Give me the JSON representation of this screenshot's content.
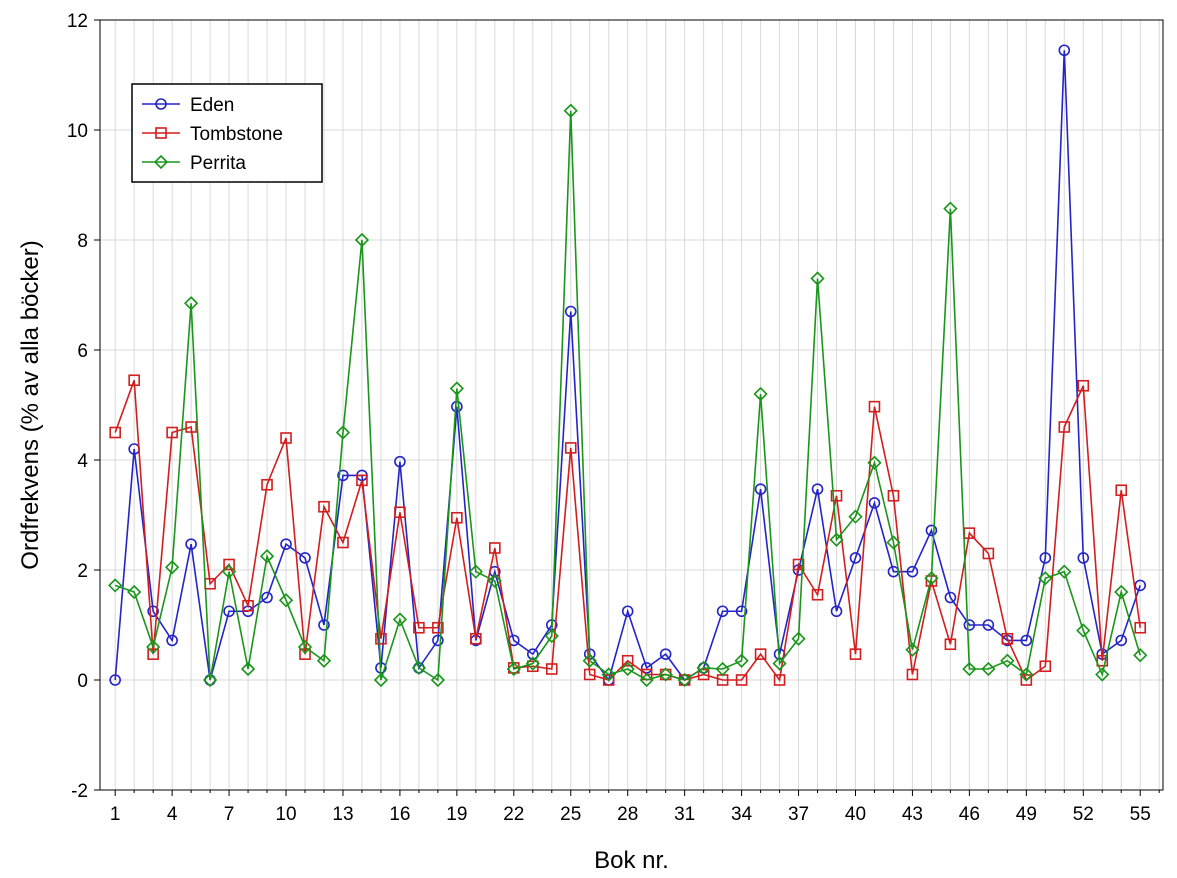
{
  "chart_data": {
    "type": "line",
    "xlabel": "Bok nr.",
    "ylabel": "Ordfrekvens (% av alla böcker)",
    "xlim": [
      0.2,
      56.2
    ],
    "ylim": [
      -2,
      12
    ],
    "x_ticks": [
      1,
      4,
      7,
      10,
      13,
      16,
      19,
      22,
      25,
      28,
      31,
      34,
      37,
      40,
      43,
      46,
      49,
      52,
      55
    ],
    "y_ticks": [
      -2,
      0,
      2,
      4,
      6,
      8,
      10,
      12
    ],
    "grid": true,
    "legend_position": "top-left",
    "x": [
      1,
      2,
      3,
      4,
      5,
      6,
      7,
      8,
      9,
      10,
      11,
      12,
      13,
      14,
      15,
      16,
      17,
      18,
      19,
      20,
      21,
      22,
      23,
      24,
      25,
      26,
      27,
      28,
      29,
      30,
      31,
      32,
      33,
      34,
      35,
      36,
      37,
      38,
      39,
      40,
      41,
      42,
      43,
      44,
      45,
      46,
      47,
      48,
      49,
      50,
      51,
      52,
      53,
      54,
      55
    ],
    "series": [
      {
        "name": "Eden",
        "color": "#2424c8",
        "marker": "circle",
        "values": [
          0,
          4.2,
          1.25,
          0.72,
          2.47,
          0,
          1.25,
          1.25,
          1.5,
          2.47,
          2.22,
          1,
          3.72,
          3.72,
          0.22,
          3.97,
          0.22,
          0.72,
          4.97,
          0.72,
          1.97,
          0.72,
          0.47,
          1,
          6.7,
          0.47,
          0,
          1.25,
          0.22,
          0.47,
          0,
          0.22,
          1.25,
          1.25,
          3.47,
          0.47,
          2,
          3.47,
          1.25,
          2.22,
          3.22,
          1.97,
          1.97,
          2.72,
          1.5,
          1,
          1,
          0.72,
          0.72,
          2.22,
          11.45,
          2.22,
          0.47,
          0.72,
          1.72
        ]
      },
      {
        "name": "Tombstone",
        "color": "#d21e1e",
        "marker": "square",
        "values": [
          4.5,
          5.45,
          0.47,
          4.5,
          4.6,
          1.75,
          2.1,
          1.35,
          3.55,
          4.4,
          0.47,
          3.15,
          2.5,
          3.63,
          0.75,
          3.05,
          0.95,
          0.95,
          2.95,
          0.75,
          2.4,
          0.22,
          0.25,
          0.2,
          4.22,
          0.1,
          0,
          0.35,
          0.1,
          0.1,
          0,
          0.1,
          0,
          0,
          0.47,
          0,
          2.1,
          1.55,
          3.35,
          0.47,
          4.97,
          3.35,
          0.1,
          1.8,
          0.65,
          2.67,
          2.3,
          0.75,
          0,
          0.25,
          4.6,
          5.35,
          0.35,
          3.45,
          0.95
        ]
      },
      {
        "name": "Perrita",
        "color": "#1a961a",
        "marker": "diamond",
        "values": [
          1.72,
          1.6,
          0.6,
          2.05,
          6.85,
          0,
          1.97,
          0.2,
          2.25,
          1.45,
          0.6,
          0.35,
          4.5,
          8,
          0,
          1.1,
          0.22,
          0,
          5.3,
          1.97,
          1.8,
          0.2,
          0.3,
          0.8,
          10.35,
          0.35,
          0.1,
          0.2,
          0,
          0.1,
          0,
          0.22,
          0.2,
          0.35,
          5.2,
          0.3,
          0.75,
          7.3,
          2.55,
          2.97,
          3.95,
          2.5,
          0.55,
          1.85,
          8.57,
          0.2,
          0.2,
          0.35,
          0.1,
          1.85,
          1.97,
          0.9,
          0.1,
          1.6,
          0.45
        ]
      }
    ]
  }
}
